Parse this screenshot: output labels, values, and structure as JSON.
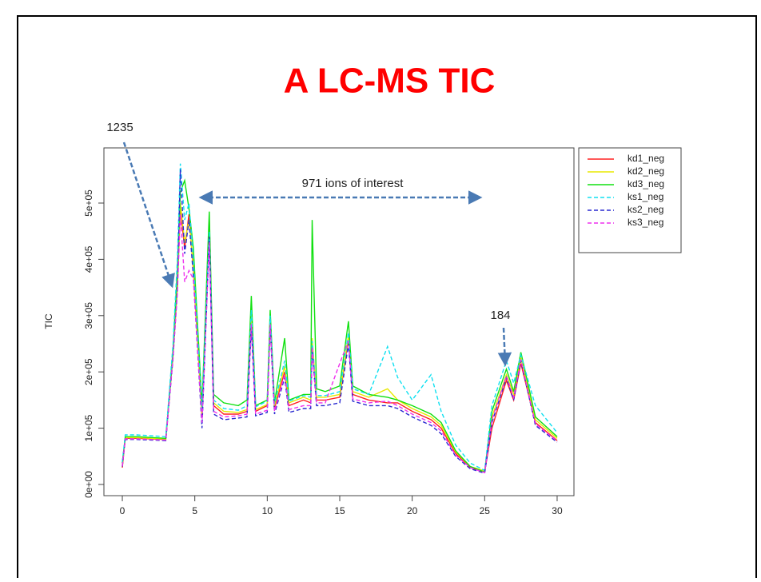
{
  "chart_data": {
    "type": "line",
    "title": "A LC-MS TIC",
    "y_label": "TIC",
    "annotations": [
      "1235",
      "971 ions of interest",
      "184"
    ],
    "xlim": [
      -1.27,
      31.16
    ],
    "xticks": [
      0,
      5,
      10,
      15,
      20,
      25,
      30
    ],
    "ylim": [
      -19900,
      598000
    ],
    "yticks": [
      {
        "value": 0,
        "label": "0e+00"
      },
      {
        "value": 100000,
        "label": "1e+05"
      },
      {
        "value": 200000,
        "label": "2e+05"
      },
      {
        "value": 300000,
        "label": "3e+05"
      },
      {
        "value": 400000,
        "label": "4e+05"
      },
      {
        "value": 500000,
        "label": "5e+05"
      }
    ],
    "legend": "outside-right",
    "x": [
      0,
      0.2,
      1,
      3,
      3.5,
      3.8,
      4,
      4.3,
      4.6,
      4.9,
      5.5,
      6,
      6.3,
      7,
      8,
      8.6,
      8.9,
      9.2,
      10,
      10.2,
      10.5,
      11.2,
      11.5,
      12.5,
      13,
      13.1,
      13.4,
      14,
      15,
      15.6,
      15.9,
      17,
      18.3,
      19,
      20,
      21.3,
      22,
      23,
      24,
      25,
      25.5,
      26.5,
      27,
      27.5,
      28.5,
      30
    ],
    "series": [
      {
        "name": "kd1_neg",
        "color": "#ff2020",
        "dash": false,
        "values": [
          30000,
          82000,
          82000,
          80000,
          230000,
          350000,
          490000,
          420000,
          480000,
          380000,
          120000,
          470000,
          140000,
          125000,
          125000,
          130000,
          290000,
          130000,
          140000,
          290000,
          135000,
          200000,
          140000,
          150000,
          145000,
          250000,
          150000,
          150000,
          155000,
          260000,
          160000,
          150000,
          145000,
          145000,
          130000,
          115000,
          100000,
          55000,
          30000,
          22000,
          100000,
          185000,
          150000,
          215000,
          110000,
          78000
        ]
      },
      {
        "name": "kd2_neg",
        "color": "#e8e800",
        "dash": false,
        "values": [
          35000,
          83000,
          83000,
          81000,
          235000,
          360000,
          500000,
          430000,
          470000,
          390000,
          125000,
          460000,
          145000,
          130000,
          128000,
          133000,
          300000,
          133000,
          142000,
          295000,
          140000,
          210000,
          145000,
          155000,
          150000,
          260000,
          155000,
          155000,
          160000,
          265000,
          165000,
          155000,
          170000,
          150000,
          135000,
          120000,
          105000,
          58000,
          32000,
          24000,
          120000,
          195000,
          160000,
          225000,
          115000,
          82000
        ]
      },
      {
        "name": "kd3_neg",
        "color": "#10e010",
        "dash": false,
        "values": [
          38000,
          85000,
          85000,
          82000,
          240000,
          380000,
          520000,
          540000,
          490000,
          420000,
          140000,
          485000,
          160000,
          145000,
          140000,
          150000,
          335000,
          140000,
          150000,
          310000,
          145000,
          260000,
          150000,
          160000,
          160000,
          470000,
          170000,
          165000,
          175000,
          290000,
          175000,
          160000,
          155000,
          150000,
          140000,
          125000,
          110000,
          60000,
          32000,
          22000,
          130000,
          205000,
          165000,
          235000,
          120000,
          85000
        ]
      },
      {
        "name": "ks1_neg",
        "color": "#10e0f0",
        "dash": true,
        "values": [
          40000,
          88000,
          88000,
          85000,
          250000,
          400000,
          570000,
          470000,
          500000,
          400000,
          130000,
          450000,
          150000,
          135000,
          132000,
          140000,
          310000,
          138000,
          148000,
          300000,
          142000,
          220000,
          148000,
          158000,
          155000,
          255000,
          158000,
          158000,
          165000,
          270000,
          170000,
          160000,
          245000,
          190000,
          150000,
          195000,
          130000,
          70000,
          38000,
          25000,
          140000,
          220000,
          180000,
          230000,
          140000,
          92000
        ]
      },
      {
        "name": "ks2_neg",
        "color": "#2a2ad0",
        "dash": true,
        "values": [
          32000,
          80000,
          80000,
          78000,
          225000,
          345000,
          560000,
          410000,
          470000,
          370000,
          100000,
          440000,
          125000,
          115000,
          118000,
          120000,
          280000,
          122000,
          128000,
          280000,
          125000,
          190000,
          128000,
          135000,
          135000,
          240000,
          140000,
          140000,
          145000,
          250000,
          148000,
          140000,
          140000,
          135000,
          120000,
          105000,
          90000,
          50000,
          28000,
          20000,
          110000,
          190000,
          150000,
          220000,
          105000,
          75000
        ]
      },
      {
        "name": "ks3_neg",
        "color": "#ee30ee",
        "dash": true,
        "values": [
          33000,
          81000,
          81000,
          79000,
          228000,
          340000,
          480000,
          360000,
          380000,
          365000,
          110000,
          430000,
          130000,
          120000,
          122000,
          125000,
          285000,
          125000,
          132000,
          285000,
          130000,
          195000,
          133000,
          140000,
          140000,
          245000,
          145000,
          145000,
          215000,
          255000,
          152000,
          145000,
          148000,
          140000,
          125000,
          110000,
          95000,
          52000,
          30000,
          21000,
          115000,
          192000,
          155000,
          222000,
          108000,
          77000
        ]
      }
    ]
  }
}
